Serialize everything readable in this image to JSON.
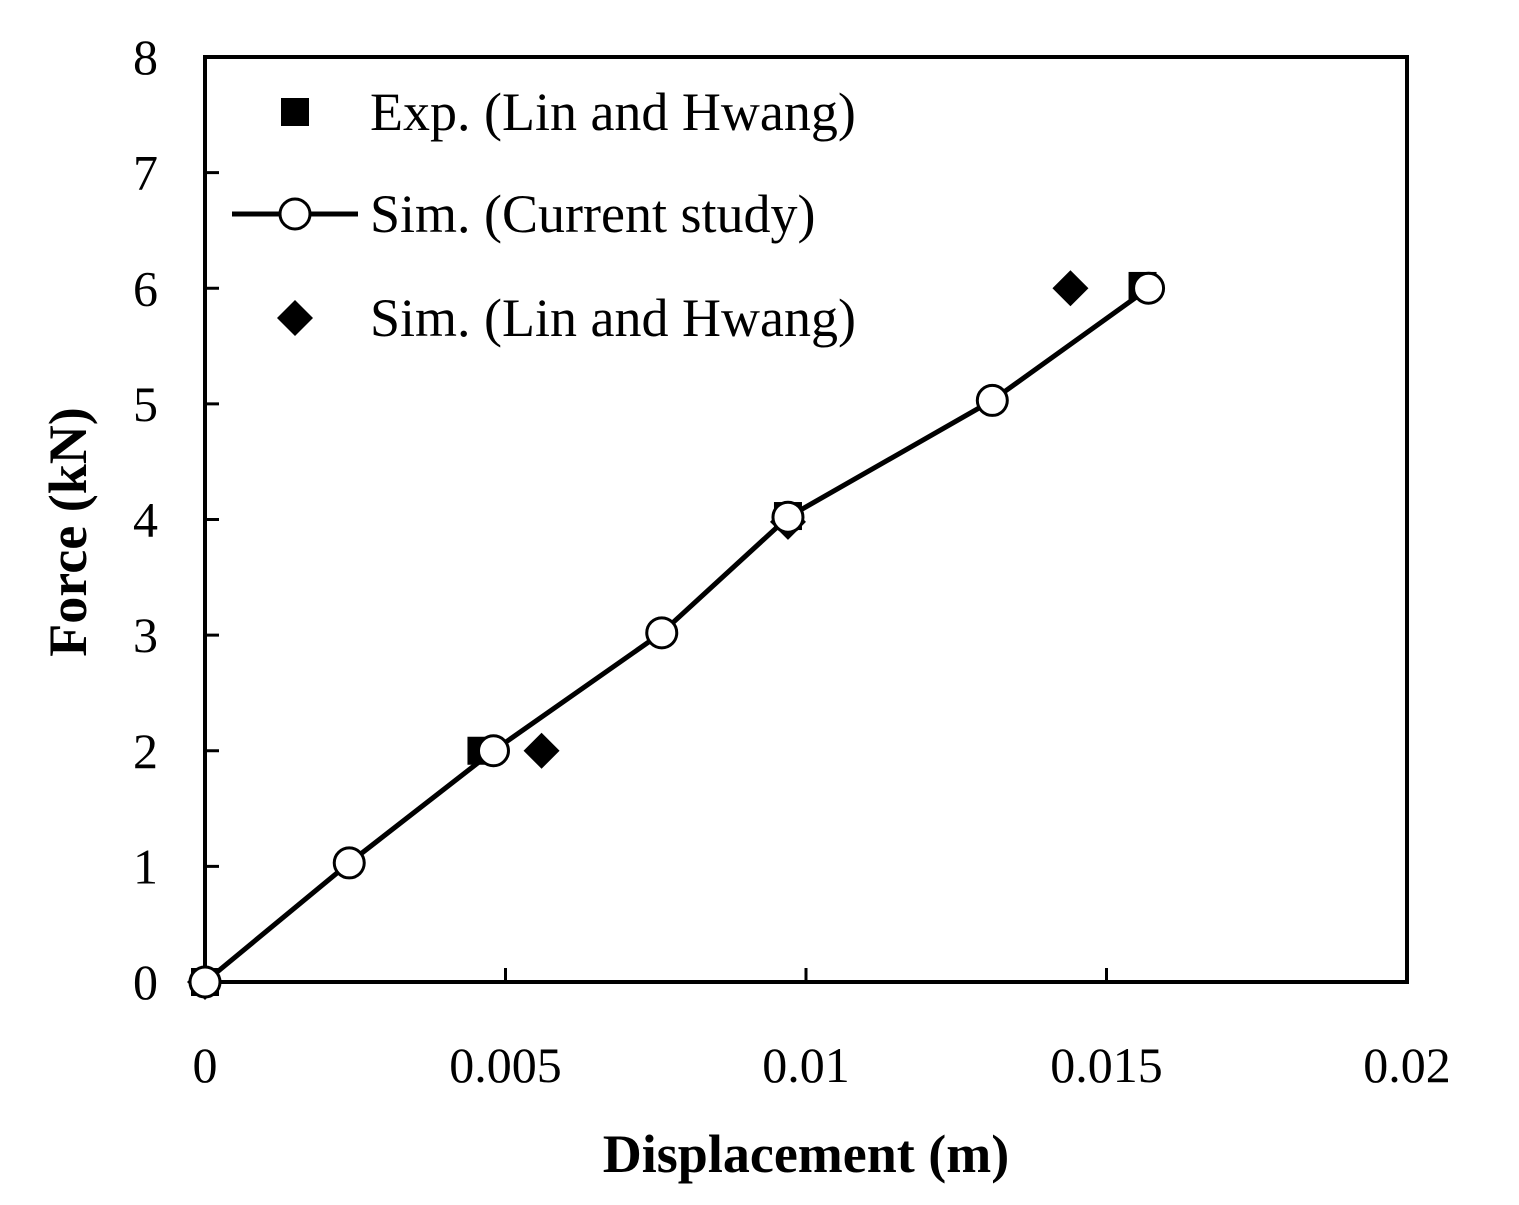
{
  "chart_data": {
    "type": "scatter",
    "title": "",
    "xlabel": "Displacement (m)",
    "ylabel": "Force (kN)",
    "xlim": [
      0,
      0.02
    ],
    "ylim": [
      0,
      8
    ],
    "x_ticks": [
      "0",
      "0.005",
      "0.01",
      "0.015",
      "0.02"
    ],
    "y_ticks": [
      "0",
      "1",
      "2",
      "3",
      "4",
      "5",
      "6",
      "7",
      "8"
    ],
    "grid": false,
    "legend_position": "top-left",
    "series": [
      {
        "name": "Exp. (Lin and Hwang)",
        "marker": "square-filled",
        "line": false,
        "color": "#000000",
        "points": [
          {
            "x": 0,
            "y": 0
          },
          {
            "x": 0.0046,
            "y": 2.0
          },
          {
            "x": 0.0097,
            "y": 4.03
          },
          {
            "x": 0.0156,
            "y": 6.02
          }
        ]
      },
      {
        "name": "Sim. (Current study)",
        "marker": "circle-open",
        "line": true,
        "color": "#000000",
        "points": [
          {
            "x": 0,
            "y": 0
          },
          {
            "x": 0.0024,
            "y": 1.03
          },
          {
            "x": 0.0048,
            "y": 2.0
          },
          {
            "x": 0.0076,
            "y": 3.02
          },
          {
            "x": 0.0097,
            "y": 4.02
          },
          {
            "x": 0.0131,
            "y": 5.03
          },
          {
            "x": 0.0157,
            "y": 6.0
          }
        ]
      },
      {
        "name": "Sim. (Lin and Hwang)",
        "marker": "diamond-filled",
        "line": false,
        "color": "#000000",
        "points": [
          {
            "x": 0,
            "y": 0
          },
          {
            "x": 0.0056,
            "y": 2.0
          },
          {
            "x": 0.0097,
            "y": 3.98
          },
          {
            "x": 0.0144,
            "y": 6.0
          }
        ]
      }
    ]
  }
}
